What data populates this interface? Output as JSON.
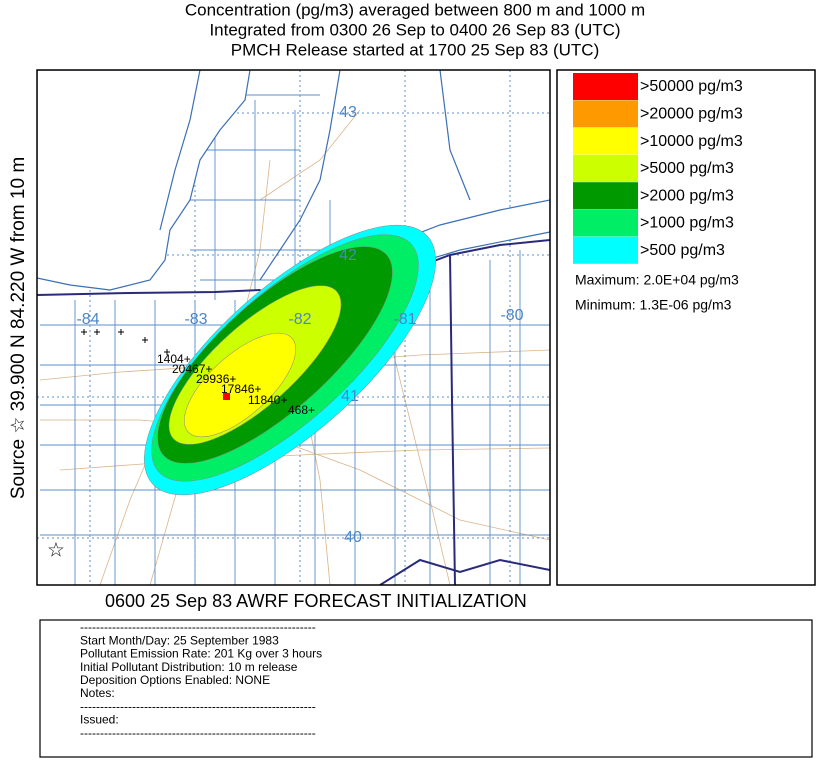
{
  "header": {
    "lines": [
      "Concentration  (pg/m3) averaged between   800 m and  1000 m",
      "Integrated from 0300 26 Sep to 0400 26 Sep 83 (UTC)",
      "PMCH Release started at 1700 25 Sep 83 (UTC)"
    ]
  },
  "side_label": "Source ☆ 39.900  N  84.220  W    from   10 m",
  "map": {
    "lat_labels": [
      "43",
      "42",
      "41",
      "40"
    ],
    "lon_labels": [
      "-84",
      "-83",
      "-82",
      "-81",
      "-80"
    ],
    "measurements": [
      "1404+",
      "20467+",
      "29936+",
      "17846+",
      "11840+",
      "468+"
    ],
    "source_marker": "☆"
  },
  "legend": {
    "items": [
      {
        "label": ">50000 pg/m3",
        "color": "#ff0000"
      },
      {
        "label": ">20000 pg/m3",
        "color": "#ff9900"
      },
      {
        "label": ">10000 pg/m3",
        "color": "#ffff00"
      },
      {
        "label": ">5000 pg/m3",
        "color": "#ccff00"
      },
      {
        "label": ">2000 pg/m3",
        "color": "#009900"
      },
      {
        "label": ">1000 pg/m3",
        "color": "#00ee66"
      },
      {
        "label": ">500 pg/m3",
        "color": "#00ffff"
      }
    ],
    "maximum": "Maximum: 2.0E+04 pg/m3",
    "minimum": "Minimum: 1.3E-06 pg/m3"
  },
  "footer": "0600 25 Sep 83 AWRF FORECAST INITIALIZATION",
  "info": [
    "-----------------------------------------------------------",
    "Start Month/Day: 25 September 1983",
    "Pollutant Emission Rate: 201 Kg over 3 hours",
    "Initial Pollutant Distribution: 10 m release",
    "Deposition Options Enabled: NONE",
    "Notes:",
    "-----------------------------------------------------------",
    "Issued:",
    "-----------------------------------------------------------"
  ]
}
